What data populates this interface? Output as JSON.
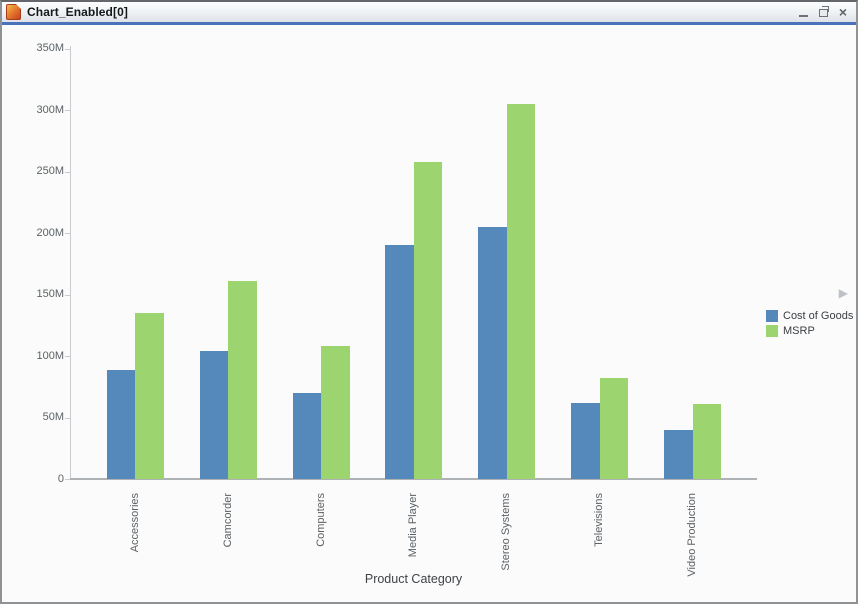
{
  "window": {
    "title": "Chart_Enabled[0]",
    "icon": "orange-document-icon",
    "controls": {
      "minimize": "minimize",
      "restore": "restore",
      "close_glyph": "×"
    }
  },
  "chart_data": {
    "type": "bar",
    "title": "",
    "categories": [
      "Accessories",
      "Camcorder",
      "Computers",
      "Media Player",
      "Stereo Systems",
      "Televisions",
      "Video Production"
    ],
    "series": [
      {
        "name": "Cost of Goods",
        "color": "#5588BB",
        "values_millions": [
          89,
          104,
          70,
          190,
          205,
          62,
          40
        ]
      },
      {
        "name": "MSRP",
        "color": "#9CD56F",
        "values_millions": [
          135,
          161,
          108,
          258,
          305,
          82,
          61
        ]
      }
    ],
    "xlabel": "Product Category",
    "ylabel": "",
    "ylim_millions": [
      0,
      350
    ],
    "ytick_interval_millions": 50,
    "ytick_labels": [
      "0",
      "50M",
      "100M",
      "150M",
      "200M",
      "250M",
      "300M",
      "350M"
    ],
    "grid": false,
    "legend_position": "right",
    "legend_overflow_icon": "▶"
  }
}
